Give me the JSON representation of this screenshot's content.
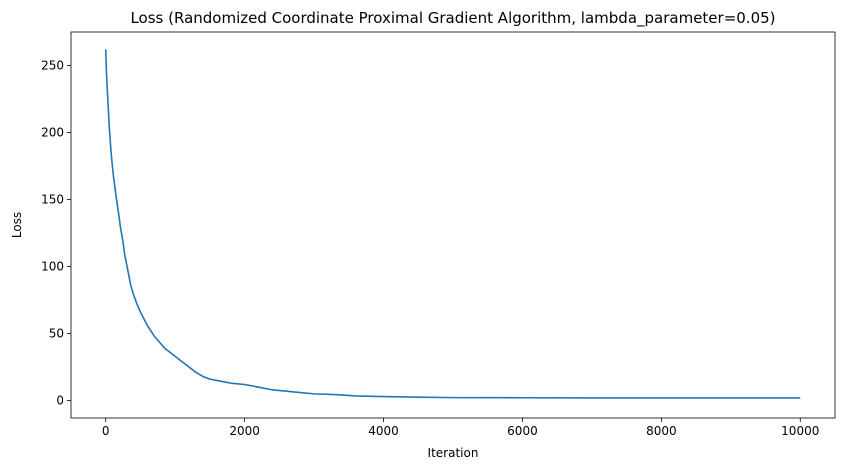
{
  "chart_data": {
    "type": "line",
    "title": "Loss (Randomized Coordinate Proximal Gradient Algorithm, lambda_parameter=0.05)",
    "xlabel": "Iteration",
    "ylabel": "Loss",
    "xlim": [
      -500,
      10500
    ],
    "ylim": [
      -13,
      275
    ],
    "xticks": [
      0,
      2000,
      4000,
      6000,
      8000,
      10000
    ],
    "yticks": [
      0,
      50,
      100,
      150,
      200,
      250
    ],
    "grid": false,
    "series": [
      {
        "color": "#1f77b4",
        "x": [
          0,
          10,
          30,
          50,
          70,
          90,
          110,
          130,
          150,
          170,
          190,
          210,
          230,
          250,
          270,
          300,
          330,
          360,
          400,
          450,
          500,
          550,
          600,
          650,
          700,
          750,
          800,
          850,
          900,
          950,
          1000,
          1100,
          1200,
          1300,
          1400,
          1500,
          1600,
          1700,
          1800,
          2000,
          2200,
          2300,
          2400,
          2600,
          2800,
          3000,
          3300,
          3600,
          4000,
          4500,
          5000,
          6000,
          7000,
          8000,
          9000,
          10000
        ],
        "y": [
          262,
          245,
          225,
          205,
          190,
          178,
          168,
          160,
          152,
          145,
          138,
          130,
          124,
          118,
          110,
          102,
          94,
          86,
          79,
          72,
          66,
          61,
          56,
          52,
          48,
          45,
          42,
          39,
          37,
          35,
          33,
          29,
          25,
          21,
          18,
          16,
          15,
          14,
          13,
          12,
          10,
          9,
          8,
          7,
          6,
          5,
          4.5,
          3.5,
          3,
          2.5,
          2.2,
          2.1,
          2,
          2,
          2,
          2
        ]
      }
    ]
  }
}
